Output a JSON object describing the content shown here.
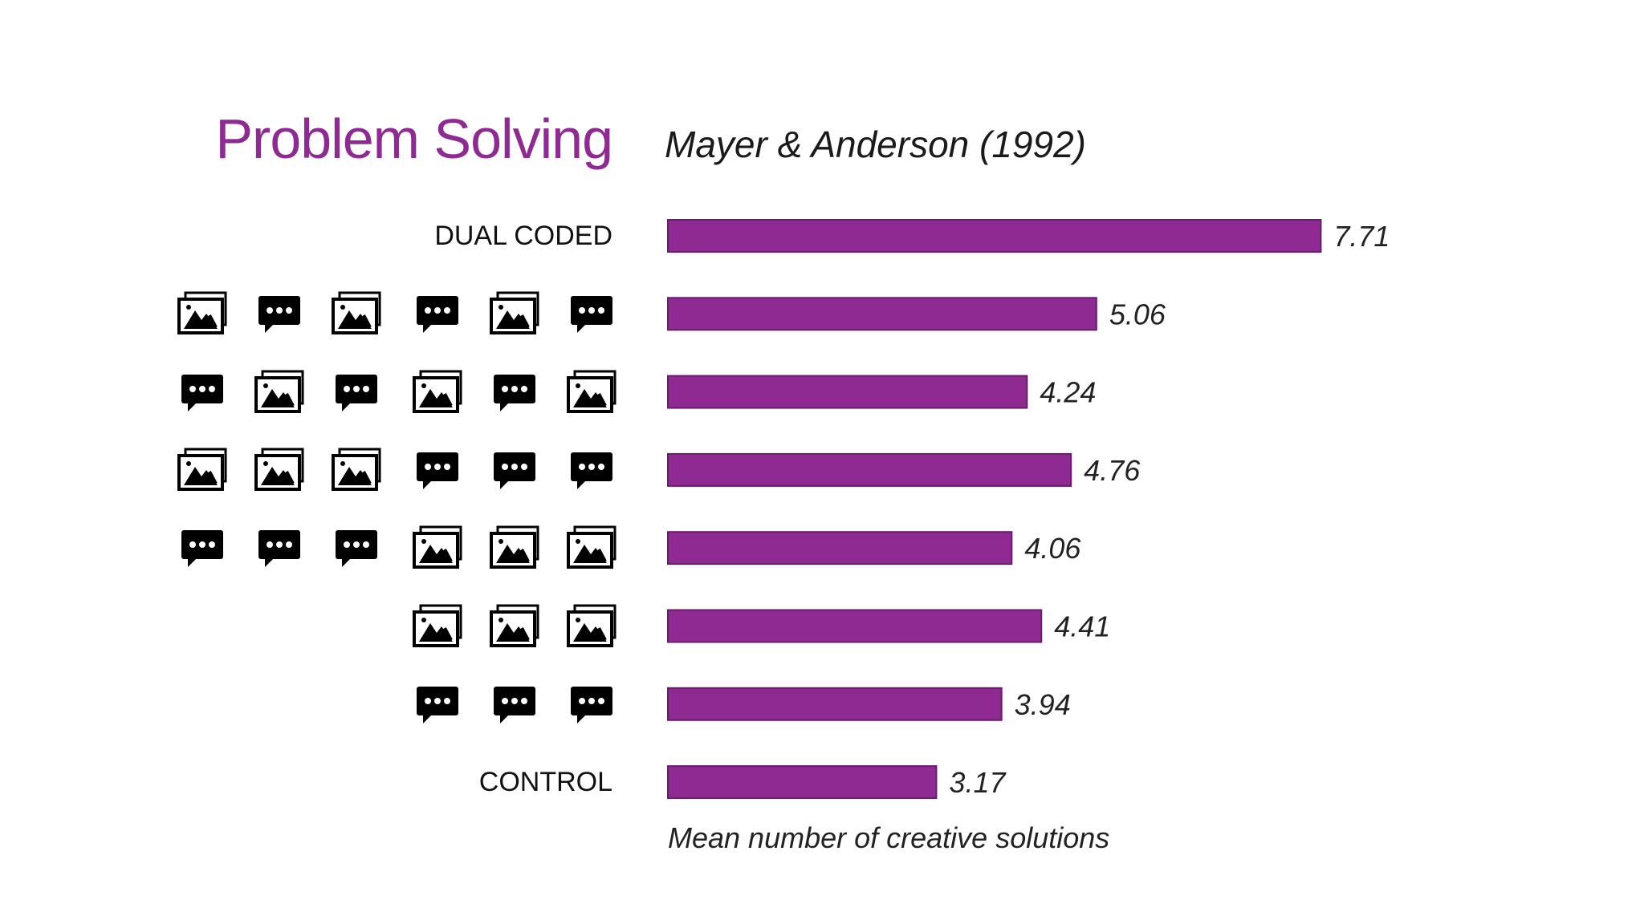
{
  "title": "Problem Solving",
  "subtitle": "Mayer & Anderson (1992)",
  "colors": {
    "accent": "#8e2a91",
    "bar": "#8e2a91",
    "bar_border": "#6a1b6d",
    "icon": "#000000"
  },
  "chart_data": {
    "type": "bar",
    "orientation": "horizontal",
    "xlabel": "Mean number of creative solutions",
    "ylabel": "",
    "xlim": [
      0,
      8
    ],
    "grid": false,
    "categories": [
      "DUAL CODED",
      "",
      "",
      "",
      "",
      "",
      "",
      "CONTROL"
    ],
    "values": [
      7.71,
      5.06,
      4.24,
      4.76,
      4.06,
      4.41,
      3.94,
      3.17
    ],
    "data_labels": [
      "7.71",
      "5.06",
      "4.24",
      "4.76",
      "4.06",
      "4.41",
      "3.94",
      "3.17"
    ],
    "row_icons": [
      [],
      [
        "image-icon",
        "speech-bubble-icon",
        "image-icon",
        "speech-bubble-icon",
        "image-icon",
        "speech-bubble-icon"
      ],
      [
        "speech-bubble-icon",
        "image-icon",
        "speech-bubble-icon",
        "image-icon",
        "speech-bubble-icon",
        "image-icon"
      ],
      [
        "image-icon",
        "image-icon",
        "image-icon",
        "speech-bubble-icon",
        "speech-bubble-icon",
        "speech-bubble-icon"
      ],
      [
        "speech-bubble-icon",
        "speech-bubble-icon",
        "speech-bubble-icon",
        "image-icon",
        "image-icon",
        "image-icon"
      ],
      [
        "image-icon",
        "image-icon",
        "image-icon"
      ],
      [
        "speech-bubble-icon",
        "speech-bubble-icon",
        "speech-bubble-icon"
      ],
      []
    ]
  }
}
